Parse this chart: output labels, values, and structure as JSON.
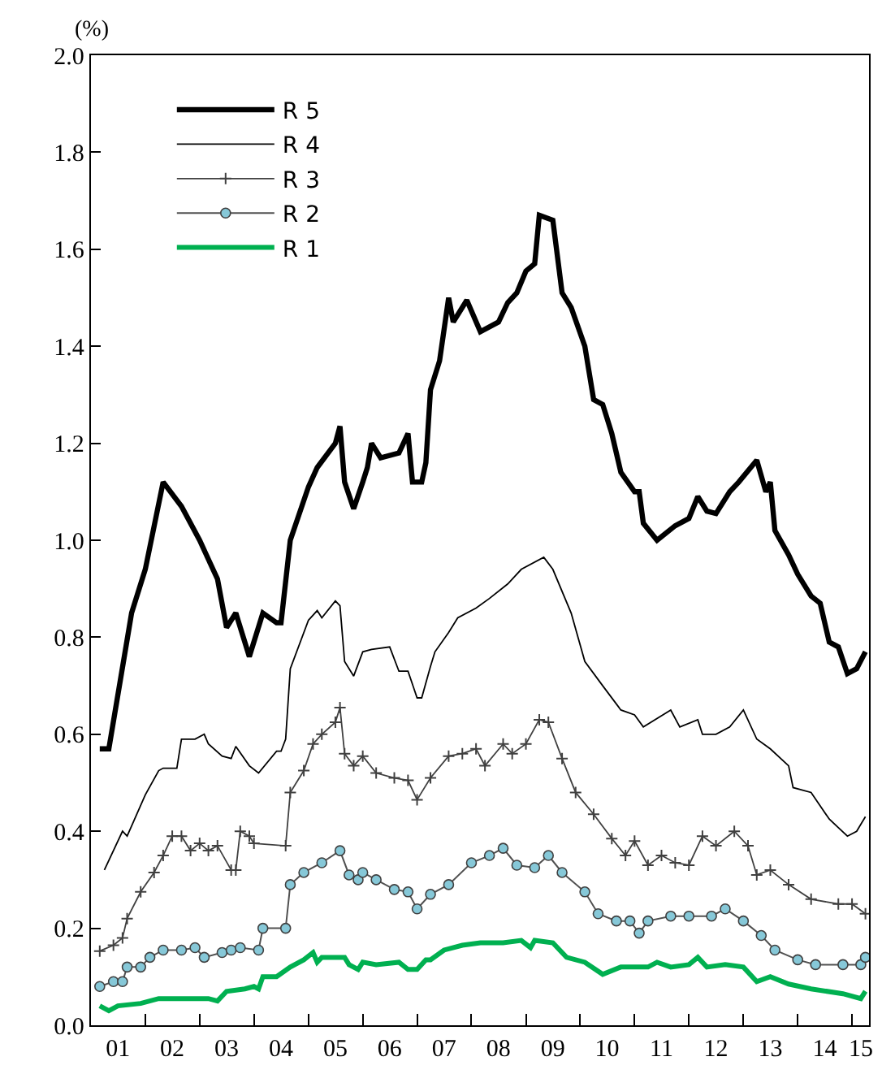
{
  "chart_data": {
    "type": "line",
    "ylabel": "(%)",
    "xlim": [
      "2001-01-01",
      "2015-04-25"
    ],
    "ylim": [
      0,
      2.0
    ],
    "xticks": [
      {
        "value": "2001-07-01",
        "label": "01"
      },
      {
        "value": "2002-01-01",
        "label": null
      },
      {
        "value": "2002-07-01",
        "label": "02"
      },
      {
        "value": "2003-01-01",
        "label": null
      },
      {
        "value": "2003-07-01",
        "label": "03"
      },
      {
        "value": "2004-01-01",
        "label": null
      },
      {
        "value": "2004-07-01",
        "label": "04"
      },
      {
        "value": "2005-01-01",
        "label": null
      },
      {
        "value": "2005-07-01",
        "label": "05"
      },
      {
        "value": "2006-01-01",
        "label": null
      },
      {
        "value": "2006-07-01",
        "label": "06"
      },
      {
        "value": "2007-01-01",
        "label": null
      },
      {
        "value": "2007-07-01",
        "label": "07"
      },
      {
        "value": "2008-01-01",
        "label": null
      },
      {
        "value": "2008-07-01",
        "label": "08"
      },
      {
        "value": "2009-01-01",
        "label": null
      },
      {
        "value": "2009-07-01",
        "label": "09"
      },
      {
        "value": "2010-01-01",
        "label": null
      },
      {
        "value": "2010-07-01",
        "label": "10"
      },
      {
        "value": "2011-01-01",
        "label": null
      },
      {
        "value": "2011-07-01",
        "label": "11"
      },
      {
        "value": "2012-01-01",
        "label": null
      },
      {
        "value": "2012-07-01",
        "label": "12"
      },
      {
        "value": "2013-01-01",
        "label": null
      },
      {
        "value": "2013-07-01",
        "label": "13"
      },
      {
        "value": "2014-01-01",
        "label": null
      },
      {
        "value": "2014-07-01",
        "label": "14"
      },
      {
        "value": "2015-01-01",
        "label": null
      },
      {
        "value": "2015-03-01",
        "label": "15"
      }
    ],
    "yticks": [
      {
        "value": 0,
        "label": "0.0"
      },
      0.2,
      0.4,
      0.6,
      0.8,
      {
        "value": 1,
        "label": "1.0"
      },
      1.2,
      1.4,
      1.6,
      1.8,
      {
        "value": 2,
        "label": "2.0"
      }
    ],
    "grid": false,
    "legend": "top left",
    "series": [
      {
        "name": "R 5",
        "color": "#000000",
        "marker": "none",
        "x": [
          "2001-03-01",
          "2001-05-01",
          "2001-10-01",
          "2002-01-01",
          "2002-05-01",
          "2002-09-01",
          "2003-01-01",
          "2003-05-01",
          "2003-07-01",
          "2003-09-01",
          "2003-12-01",
          "2004-03-01",
          "2004-06-01",
          "2004-07-01",
          "2004-09-01",
          "2005-01-01",
          "2005-03-01",
          "2005-07-01",
          "2005-08-01",
          "2005-09-01",
          "2005-11-01",
          "2006-01-01",
          "2006-02-01",
          "2006-03-01",
          "2006-05-01",
          "2006-09-01",
          "2006-11-01",
          "2006-12-01",
          "2007-02-01",
          "2007-03-01",
          "2007-04-01",
          "2007-06-01",
          "2007-08-01",
          "2007-09-01",
          "2007-12-01",
          "2008-03-01",
          "2008-07-01",
          "2008-09-01",
          "2008-11-01",
          "2009-01-01",
          "2009-03-01",
          "2009-04-01",
          "2009-07-01",
          "2009-09-01",
          "2009-11-01",
          "2010-02-01",
          "2010-04-01",
          "2010-06-01",
          "2010-08-01",
          "2010-10-01",
          "2011-01-01",
          "2011-02-01",
          "2011-03-01",
          "2011-06-01",
          "2011-10-01",
          "2012-01-01",
          "2012-03-01",
          "2012-05-01",
          "2012-07-01",
          "2012-10-01",
          "2012-12-01",
          "2013-04-01",
          "2013-06-01",
          "2013-07-01",
          "2013-08-01",
          "2013-11-01",
          "2014-01-01",
          "2014-04-01",
          "2014-06-01",
          "2014-08-01",
          "2014-10-01",
          "2014-12-01",
          "2015-02-01",
          "2015-04-01"
        ],
        "values": [
          0.57,
          0.57,
          0.85,
          0.94,
          1.12,
          1.07,
          1.0,
          0.92,
          0.82,
          0.85,
          0.76,
          0.85,
          0.83,
          0.83,
          1.0,
          1.11,
          1.15,
          1.2,
          1.235,
          1.12,
          1.065,
          1.12,
          1.15,
          1.2,
          1.17,
          1.18,
          1.22,
          1.12,
          1.12,
          1.16,
          1.31,
          1.37,
          1.5,
          1.45,
          1.495,
          1.43,
          1.45,
          1.49,
          1.51,
          1.555,
          1.57,
          1.67,
          1.66,
          1.51,
          1.48,
          1.4,
          1.29,
          1.28,
          1.22,
          1.14,
          1.1,
          1.1,
          1.035,
          1.0,
          1.03,
          1.045,
          1.09,
          1.06,
          1.055,
          1.1,
          1.12,
          1.165,
          1.1,
          1.12,
          1.02,
          0.97,
          0.93,
          0.885,
          0.87,
          0.79,
          0.78,
          0.725,
          0.735,
          0.77
        ]
      },
      {
        "name": "R 4",
        "color": "#000000",
        "marker": "none",
        "x": [
          "2001-04-01",
          "2001-08-01",
          "2001-09-01",
          "2002-01-01",
          "2002-04-01",
          "2002-05-01",
          "2002-08-01",
          "2002-09-01",
          "2002-12-01",
          "2003-02-01",
          "2003-03-01",
          "2003-06-01",
          "2003-08-01",
          "2003-09-01",
          "2003-12-01",
          "2004-02-01",
          "2004-06-01",
          "2004-07-01",
          "2004-08-01",
          "2004-09-01",
          "2005-01-01",
          "2005-03-01",
          "2005-04-01",
          "2005-07-01",
          "2005-08-01",
          "2005-09-01",
          "2005-11-01",
          "2006-01-01",
          "2006-03-01",
          "2006-07-01",
          "2006-09-01",
          "2006-11-01",
          "2007-01-01",
          "2007-02-01",
          "2007-04-01",
          "2007-05-01",
          "2007-08-01",
          "2007-10-01",
          "2008-02-01",
          "2008-05-01",
          "2008-09-01",
          "2008-12-01",
          "2009-05-01",
          "2009-07-01",
          "2009-11-01",
          "2010-02-01",
          "2010-06-01",
          "2010-10-01",
          "2011-01-01",
          "2011-03-01",
          "2011-09-01",
          "2011-11-01",
          "2012-03-01",
          "2012-04-01",
          "2012-07-01",
          "2012-10-01",
          "2013-01-01",
          "2013-04-01",
          "2013-07-01",
          "2013-11-01",
          "2013-12-01",
          "2014-04-01",
          "2014-08-01",
          "2014-12-01",
          "2015-02-01",
          "2015-04-01"
        ],
        "values": [
          0.32,
          0.4,
          0.39,
          0.475,
          0.525,
          0.53,
          0.53,
          0.59,
          0.59,
          0.6,
          0.58,
          0.555,
          0.55,
          0.575,
          0.535,
          0.52,
          0.565,
          0.565,
          0.59,
          0.735,
          0.835,
          0.855,
          0.84,
          0.875,
          0.865,
          0.75,
          0.72,
          0.77,
          0.775,
          0.78,
          0.73,
          0.73,
          0.675,
          0.675,
          0.74,
          0.77,
          0.81,
          0.84,
          0.86,
          0.88,
          0.91,
          0.94,
          0.965,
          0.94,
          0.85,
          0.75,
          0.7,
          0.65,
          0.64,
          0.615,
          0.65,
          0.615,
          0.63,
          0.6,
          0.6,
          0.615,
          0.65,
          0.59,
          0.57,
          0.535,
          0.49,
          0.48,
          0.425,
          0.39,
          0.4,
          0.43
        ]
      },
      {
        "name": "R 3",
        "color": "#404040",
        "marker": "cross",
        "x": [
          "2001-03-01",
          "2001-06-01",
          "2001-08-01",
          "2001-09-01",
          "2001-12-01",
          "2002-03-01",
          "2002-05-01",
          "2002-07-01",
          "2002-09-01",
          "2002-11-01",
          "2003-01-01",
          "2003-03-01",
          "2003-05-01",
          "2003-08-01",
          "2003-09-01",
          "2003-10-01",
          "2003-12-01",
          "2004-01-01",
          "2004-08-01",
          "2004-09-01",
          "2004-12-01",
          "2005-02-01",
          "2005-04-01",
          "2005-07-01",
          "2005-08-01",
          "2005-09-01",
          "2005-11-01",
          "2006-01-01",
          "2006-04-01",
          "2006-08-01",
          "2006-11-01",
          "2007-01-01",
          "2007-04-01",
          "2007-08-01",
          "2007-11-01",
          "2008-02-01",
          "2008-04-01",
          "2008-08-01",
          "2008-10-01",
          "2009-01-01",
          "2009-04-01",
          "2009-06-01",
          "2009-09-01",
          "2009-12-01",
          "2010-04-01",
          "2010-08-01",
          "2010-11-01",
          "2011-01-01",
          "2011-04-01",
          "2011-07-01",
          "2011-10-01",
          "2012-01-01",
          "2012-04-01",
          "2012-07-01",
          "2012-11-01",
          "2013-02-01",
          "2013-04-01",
          "2013-07-01",
          "2013-11-01",
          "2014-04-01",
          "2014-10-01",
          "2015-01-01",
          "2015-04-01"
        ],
        "values": [
          0.153,
          0.165,
          0.18,
          0.22,
          0.275,
          0.315,
          0.35,
          0.39,
          0.39,
          0.36,
          0.375,
          0.36,
          0.37,
          0.32,
          0.32,
          0.4,
          0.39,
          0.375,
          0.37,
          0.48,
          0.525,
          0.58,
          0.6,
          0.625,
          0.655,
          0.56,
          0.535,
          0.555,
          0.52,
          0.51,
          0.505,
          0.465,
          0.51,
          0.555,
          0.56,
          0.57,
          0.535,
          0.58,
          0.56,
          0.58,
          0.63,
          0.625,
          0.55,
          0.48,
          0.435,
          0.385,
          0.35,
          0.38,
          0.33,
          0.35,
          0.335,
          0.33,
          0.39,
          0.37,
          0.4,
          0.37,
          0.31,
          0.32,
          0.29,
          0.26,
          0.25,
          0.25,
          0.23
        ]
      },
      {
        "name": "R 2",
        "color": "#86c8d8",
        "marker": "circle",
        "x": [
          "2001-03-01",
          "2001-06-01",
          "2001-08-01",
          "2001-09-01",
          "2001-12-01",
          "2002-02-01",
          "2002-05-01",
          "2002-09-01",
          "2002-12-01",
          "2003-02-01",
          "2003-06-01",
          "2003-08-01",
          "2003-10-01",
          "2004-02-01",
          "2004-03-01",
          "2004-08-01",
          "2004-09-01",
          "2004-12-01",
          "2005-04-01",
          "2005-08-01",
          "2005-10-01",
          "2005-12-01",
          "2006-01-01",
          "2006-04-01",
          "2006-08-01",
          "2006-11-01",
          "2007-01-01",
          "2007-04-01",
          "2007-08-01",
          "2008-01-01",
          "2008-05-01",
          "2008-08-01",
          "2008-11-01",
          "2009-03-01",
          "2009-06-01",
          "2009-09-01",
          "2010-02-01",
          "2010-05-01",
          "2010-09-01",
          "2010-12-01",
          "2011-02-01",
          "2011-04-01",
          "2011-09-01",
          "2012-01-01",
          "2012-06-01",
          "2012-09-01",
          "2013-01-01",
          "2013-05-01",
          "2013-08-01",
          "2014-01-01",
          "2014-05-01",
          "2014-11-01",
          "2015-03-01",
          "2015-04-01"
        ],
        "values": [
          0.08,
          0.09,
          0.09,
          0.12,
          0.12,
          0.14,
          0.155,
          0.155,
          0.16,
          0.14,
          0.15,
          0.155,
          0.16,
          0.155,
          0.2,
          0.2,
          0.29,
          0.315,
          0.335,
          0.36,
          0.31,
          0.3,
          0.315,
          0.3,
          0.28,
          0.275,
          0.24,
          0.27,
          0.29,
          0.335,
          0.35,
          0.365,
          0.33,
          0.325,
          0.35,
          0.315,
          0.275,
          0.23,
          0.215,
          0.215,
          0.19,
          0.215,
          0.225,
          0.225,
          0.225,
          0.24,
          0.215,
          0.185,
          0.155,
          0.135,
          0.125,
          0.125,
          0.125,
          0.14
        ]
      },
      {
        "name": "R 1",
        "color": "#00b050",
        "marker": "none",
        "x": [
          "2001-03-01",
          "2001-05-01",
          "2001-07-01",
          "2001-12-01",
          "2002-04-01",
          "2003-03-01",
          "2003-05-01",
          "2003-07-01",
          "2003-11-01",
          "2004-01-01",
          "2004-02-01",
          "2004-03-01",
          "2004-06-01",
          "2004-09-01",
          "2004-12-01",
          "2005-02-01",
          "2005-03-01",
          "2005-04-01",
          "2005-09-01",
          "2005-10-01",
          "2005-12-01",
          "2006-01-01",
          "2006-04-01",
          "2006-09-01",
          "2006-11-01",
          "2007-01-01",
          "2007-03-01",
          "2007-04-01",
          "2007-07-01",
          "2007-11-01",
          "2008-03-01",
          "2008-08-01",
          "2008-12-01",
          "2009-02-01",
          "2009-03-01",
          "2009-07-01",
          "2009-10-01",
          "2010-02-01",
          "2010-06-01",
          "2010-10-01",
          "2011-04-01",
          "2011-06-01",
          "2011-09-01",
          "2012-01-01",
          "2012-03-01",
          "2012-05-01",
          "2012-09-01",
          "2013-01-01",
          "2013-04-01",
          "2013-07-01",
          "2013-11-01",
          "2014-04-01",
          "2014-11-01",
          "2015-03-01",
          "2015-04-01"
        ],
        "values": [
          0.04,
          0.03,
          0.04,
          0.045,
          0.055,
          0.055,
          0.05,
          0.07,
          0.075,
          0.08,
          0.075,
          0.1,
          0.1,
          0.12,
          0.135,
          0.15,
          0.13,
          0.14,
          0.14,
          0.125,
          0.115,
          0.13,
          0.125,
          0.13,
          0.115,
          0.115,
          0.135,
          0.135,
          0.155,
          0.165,
          0.17,
          0.17,
          0.175,
          0.16,
          0.175,
          0.17,
          0.14,
          0.13,
          0.105,
          0.12,
          0.12,
          0.13,
          0.12,
          0.125,
          0.14,
          0.12,
          0.125,
          0.12,
          0.09,
          0.1,
          0.085,
          0.075,
          0.065,
          0.055,
          0.07
        ]
      }
    ]
  }
}
